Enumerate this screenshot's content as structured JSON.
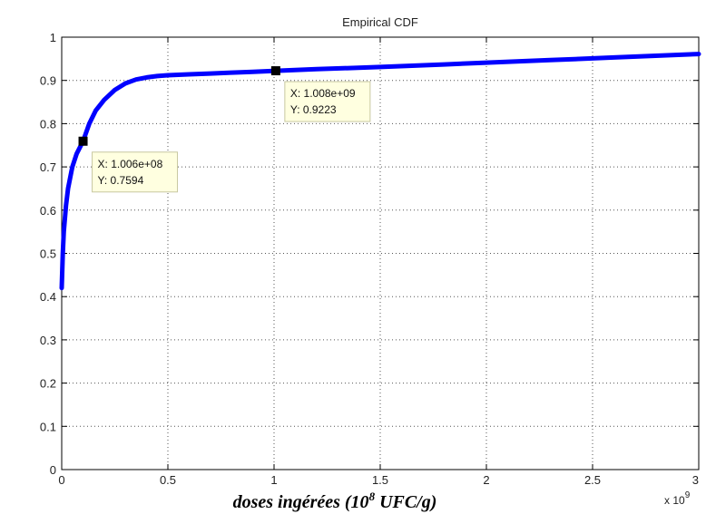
{
  "chart_data": {
    "type": "line",
    "title": "Empirical CDF",
    "xlabel_pre": "doses ingérées (10",
    "xlabel_sup": "8",
    "xlabel_post": " UFC/g)",
    "x_exponent_label": "x 10",
    "x_exponent_sup": "9",
    "xlim": [
      0,
      3
    ],
    "ylim": [
      0,
      1
    ],
    "xticks": [
      0,
      0.5,
      1,
      1.5,
      2,
      2.5,
      3
    ],
    "xtick_labels": [
      "0",
      "0.5",
      "1",
      "1.5",
      "2",
      "2.5",
      "3"
    ],
    "yticks": [
      0,
      0.1,
      0.2,
      0.3,
      0.4,
      0.5,
      0.6,
      0.7,
      0.8,
      0.9,
      1
    ],
    "ytick_labels": [
      "0",
      "0.1",
      "0.2",
      "0.3",
      "0.4",
      "0.5",
      "0.6",
      "0.7",
      "0.8",
      "0.9",
      "1"
    ],
    "grid": true,
    "line_color": "#0000ff",
    "series": [
      {
        "x": [
          0,
          0.005,
          0.01,
          0.02,
          0.03,
          0.05,
          0.07,
          0.1006,
          0.13,
          0.16,
          0.2,
          0.25,
          0.3,
          0.35,
          0.4,
          0.45,
          0.5,
          0.6,
          0.7,
          0.8,
          0.9,
          1.008,
          1.2,
          1.5,
          1.8,
          2.0,
          2.3,
          2.6,
          3.0
        ],
        "y": [
          0.42,
          0.5,
          0.55,
          0.61,
          0.65,
          0.7,
          0.73,
          0.7594,
          0.8,
          0.83,
          0.855,
          0.878,
          0.893,
          0.902,
          0.907,
          0.91,
          0.912,
          0.914,
          0.916,
          0.918,
          0.92,
          0.9223,
          0.926,
          0.931,
          0.937,
          0.941,
          0.947,
          0.953,
          0.961
        ]
      }
    ],
    "datatips": [
      {
        "x": 0.1006,
        "y": 0.7594,
        "text_x": "X: 1.006e+08",
        "text_y": "Y: 0.7594"
      },
      {
        "x": 1.008,
        "y": 0.9223,
        "text_x": "X: 1.008e+09",
        "text_y": "Y: 0.9223"
      }
    ]
  }
}
